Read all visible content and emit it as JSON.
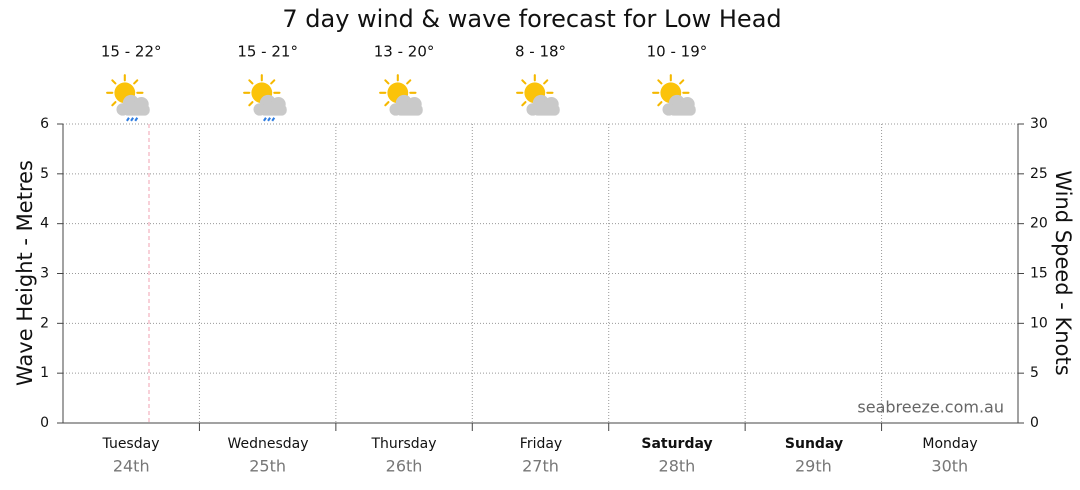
{
  "chart_data": {
    "type": "line",
    "title": "7 day wind & wave forecast for Low Head",
    "categories": [
      "Tuesday",
      "Wednesday",
      "Thursday",
      "Friday",
      "Saturday",
      "Sunday",
      "Monday"
    ],
    "dates": [
      "24th",
      "25th",
      "26th",
      "27th",
      "28th",
      "29th",
      "30th"
    ],
    "temperatures": [
      "15 - 22°",
      "15 - 21°",
      "13 - 20°",
      "8 - 18°",
      "10 - 19°"
    ],
    "ylabel": "Wave Height - Metres",
    "y2label": "Wind Speed - Knots",
    "ylim": [
      0,
      6
    ],
    "yticks": [
      0,
      1,
      2,
      3,
      4,
      5,
      6
    ],
    "y2lim": [
      0,
      30
    ],
    "y2ticks": [
      0,
      5,
      10,
      15,
      20,
      25,
      30
    ],
    "grid": true,
    "series": [],
    "annotation": "seabreeze.com.au"
  }
}
